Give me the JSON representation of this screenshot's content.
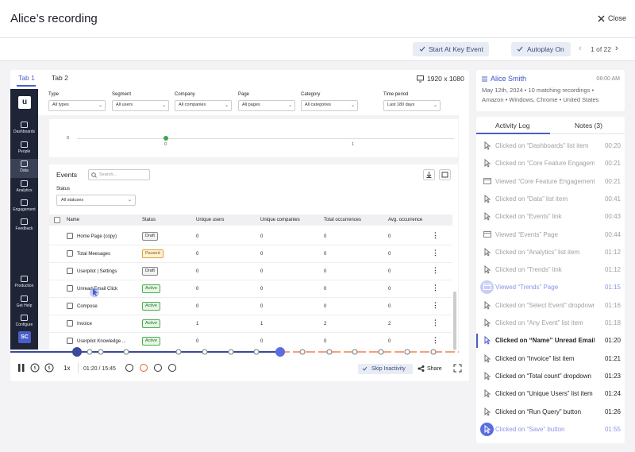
{
  "header": {
    "title": "Alice’s recording",
    "close": "Close"
  },
  "toolbar": {
    "start_key_event": "Start At Key Event",
    "autoplay": "Autoplay On",
    "pager": "1 of 22"
  },
  "tabs": [
    "Tab 1",
    "Tab 2"
  ],
  "resolution": "1920 x 1080",
  "sidebar": {
    "logo": "u",
    "items": [
      "Dashboards",
      "People",
      "Data",
      "Analytics",
      "Engagement",
      "Feedback",
      "Production",
      "Get Help",
      "Configure"
    ],
    "avatar": "SC"
  },
  "filters": [
    {
      "label": "Type",
      "value": "All types"
    },
    {
      "label": "Segment",
      "value": "All users"
    },
    {
      "label": "Company",
      "value": "All companies"
    },
    {
      "label": "Page",
      "value": "All pages"
    },
    {
      "label": "Category",
      "value": "All categories"
    },
    {
      "label": "Time period",
      "value": "Last 180 days"
    }
  ],
  "mini_chart": {
    "labels": [
      "0",
      "0",
      "1"
    ]
  },
  "events": {
    "title": "Events",
    "search": "Search...",
    "status_label": "Status",
    "status_value": "All statuses",
    "columns": [
      "Name",
      "Status",
      "Unique users",
      "Unique companies",
      "Total occurrences",
      "Avg. occurrence"
    ],
    "rows": [
      [
        "Home Page (copy)",
        "Draft",
        "0",
        "0",
        "0",
        "0"
      ],
      [
        "Total Meesages",
        "Paused",
        "0",
        "0",
        "0",
        "0"
      ],
      [
        "Userpilot | Settings",
        "Draft",
        "0",
        "0",
        "0",
        "0"
      ],
      [
        "Unread Email Click",
        "Active",
        "0",
        "0",
        "0",
        "0"
      ],
      [
        "Compose",
        "Active",
        "0",
        "0",
        "0",
        "0"
      ],
      [
        "Invoice",
        "Active",
        "1",
        "1",
        "2",
        "2"
      ],
      [
        "Userpilot Knowledge ...",
        "Active",
        "0",
        "0",
        "0",
        "0"
      ]
    ]
  },
  "player": {
    "speed": "1x",
    "time": "01:20 / 15:45",
    "skip": "Skip Inactivity",
    "share": "Share"
  },
  "user": {
    "name": "Alice Smith",
    "time": "08:00 AM",
    "meta1": "May 12th, 2024 • 10 matching recordings •",
    "meta2": "Amazon • Windows, Chrome • United States"
  },
  "log_tabs": [
    "Activity Log",
    "Notes (3)"
  ],
  "log": [
    {
      "text": "Clicked on “Dashboards” list item",
      "time": "00:20"
    },
    {
      "text": "Clicked on “Core Feature Engagem",
      "time": "00:21"
    },
    {
      "text": "Viewed “Core Feature Engagement”",
      "time": "00:21"
    },
    {
      "text": "Clicked on “Data” list item",
      "time": "00:41"
    },
    {
      "text": "Clicked on “Events” link",
      "time": "00:43"
    },
    {
      "text": "Viewed “Events” Page",
      "time": "00:44"
    },
    {
      "text": "Clicked on “Analytics” list item",
      "time": "01:12"
    },
    {
      "text": "Clicked on “Trends” link",
      "time": "01:12"
    },
    {
      "text": "Viewed “Trends” Page",
      "time": "01:15"
    },
    {
      "text": "Clicked on “Select Event” dropdown",
      "time": "01:16"
    },
    {
      "text": "Clicked on “Any Event” list item",
      "time": "01:18"
    },
    {
      "text": "Clicked on “Name”  Unread Email C...",
      "time": "01:20"
    },
    {
      "text": "Clicked on “Invoice” list item",
      "time": "01:21"
    },
    {
      "text": "Clicked on “Total count” dropdown",
      "time": "01:23"
    },
    {
      "text": "Clicked on “Unique Users” list item",
      "time": "01:24"
    },
    {
      "text": "Clicked on “Run Query” button",
      "time": "01:26"
    },
    {
      "text": "Clicked on “Save” button",
      "time": "01:55"
    }
  ]
}
